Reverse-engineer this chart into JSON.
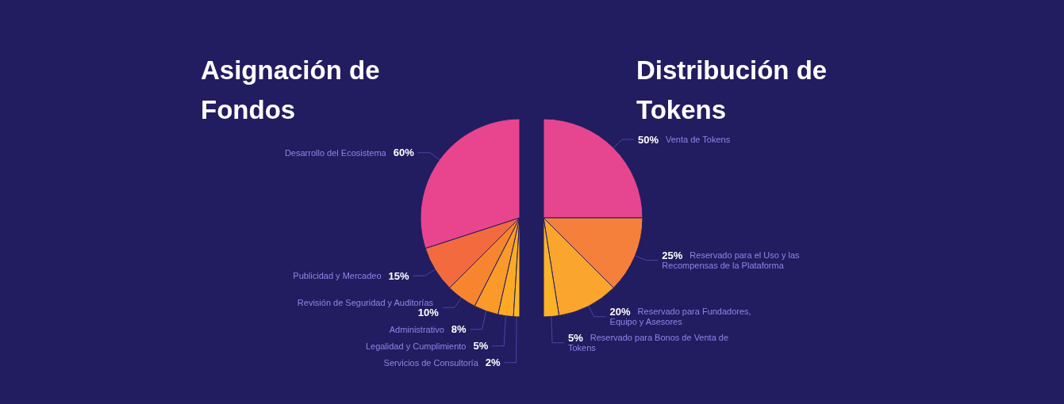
{
  "chart_data": [
    {
      "type": "pie",
      "title": "Asignación de Fondos",
      "categories": [
        "Desarrollo del Ecosistema",
        "Publicidad y Mercadeo",
        "Revisión de Seguridad y Auditorías",
        "Administrativo",
        "Legalidad y Cumplimiento",
        "Servicios de Consultoría"
      ],
      "values": [
        60,
        15,
        10,
        8,
        5,
        2
      ],
      "value_labels": [
        "60%",
        "15%",
        "10%",
        "8%",
        "5%",
        "2%"
      ],
      "colors": [
        "#e8458e",
        "#f26a3e",
        "#f7852f",
        "#fa9a28",
        "#fcaa24",
        "#fdb822"
      ]
    },
    {
      "type": "pie",
      "title": "Distribución de Tokens",
      "categories": [
        "Venta de Tokens",
        "Reservado para el Uso y las Recompensas de la Plataforma",
        "Reservado para Fundadores, Equipo y Asesores",
        "Reservado para Bonos de Venta de Tokens"
      ],
      "values": [
        50,
        25,
        20,
        5
      ],
      "value_labels": [
        "50%",
        "25%",
        "20%",
        "5%"
      ],
      "colors": [
        "#e6468f",
        "#f4803c",
        "#f9a52e",
        "#fcb327"
      ]
    }
  ]
}
